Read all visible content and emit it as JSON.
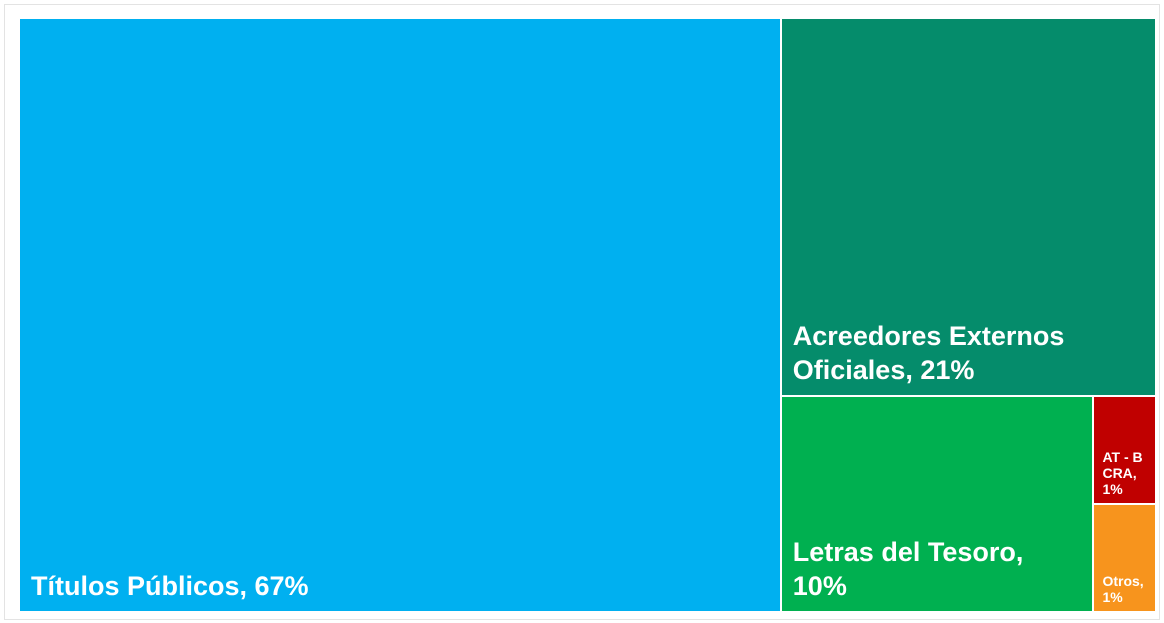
{
  "chart_data": {
    "type": "treemap",
    "values": [
      67,
      21,
      10,
      1,
      1
    ],
    "value_labels": [
      "Títulos Públicos, 67%",
      "Acreedores Externos Oficiales, 21%",
      "Letras del Tesoro, 10%",
      "AT - BCRA, 1%",
      "Otros, 1%"
    ],
    "colors": [
      "#00b0f0",
      "#058c6b",
      "#00b050",
      "#c00000",
      "#f7941d"
    ]
  }
}
